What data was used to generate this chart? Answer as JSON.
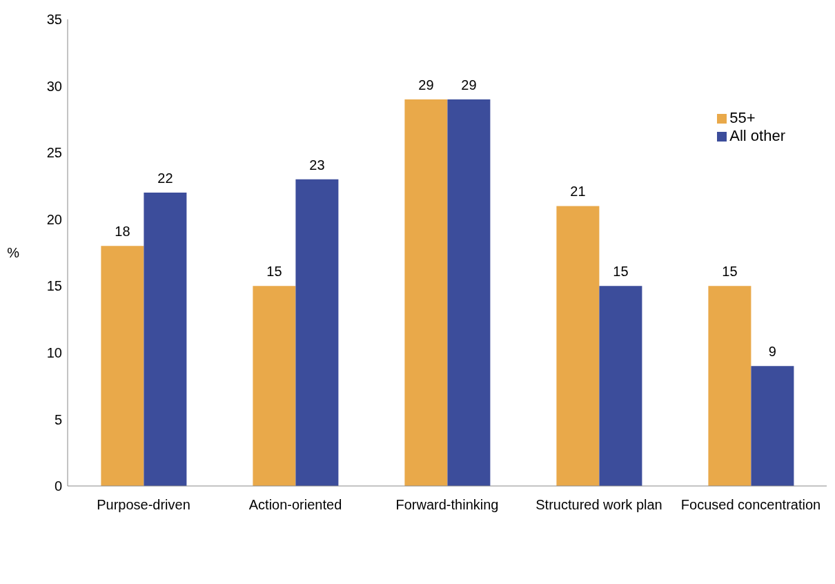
{
  "chart_data": {
    "type": "bar",
    "ylabel": "%",
    "categories": [
      "Purpose-driven",
      "Action-oriented",
      "Forward-thinking",
      "Structured work plan",
      "Focused concentration"
    ],
    "series": [
      {
        "name": "55+",
        "color": "#e9a94a",
        "values": [
          18,
          15,
          29,
          21,
          15
        ]
      },
      {
        "name": "All other",
        "color": "#3c4d9b",
        "values": [
          22,
          23,
          29,
          15,
          9
        ]
      }
    ],
    "ylim": [
      0,
      35
    ],
    "yticks": [
      0,
      5,
      10,
      15,
      20,
      25,
      30,
      35
    ],
    "grid": false,
    "legend": "top right",
    "data_labels": true
  }
}
